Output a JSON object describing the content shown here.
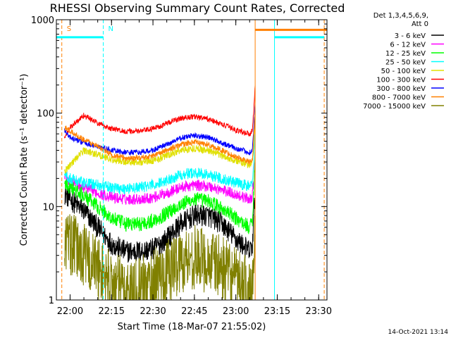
{
  "chart_data": {
    "type": "line",
    "title": "RHESSI Observing Summary Count Rates, Corrected",
    "xlabel": "Start Time (18-Mar-07 21:55:02)",
    "ylabel": "Corrected Count Rate (s⁻¹ detector⁻¹)",
    "y_scale": "log",
    "ylim": [
      1,
      1000
    ],
    "xlim": [
      "21:55:02",
      "23:33:00"
    ],
    "grid": false,
    "legend_position": "right",
    "legend_header": [
      "Det 1,3,4,5,6,9,",
      "Att 0"
    ],
    "x_ticks": [
      "22:00",
      "22:15",
      "22:30",
      "22:45",
      "23:00",
      "23:15",
      "23:30"
    ],
    "y_ticks": [
      "1",
      "10",
      "100",
      "1000"
    ],
    "annotations": [
      {
        "label": "S",
        "time": "21:57",
        "color": "#ff8000"
      },
      {
        "label": "N",
        "time": "22:12",
        "color": "#00ffff"
      }
    ],
    "vertical_lines": [
      {
        "time": "21:55",
        "color": "#00ffff",
        "style": "solid"
      },
      {
        "time": "21:57",
        "color": "#ff8000",
        "style": "dashed"
      },
      {
        "time": "22:12",
        "color": "#00ffff",
        "style": "dashed"
      },
      {
        "time": "23:07",
        "color": "#ff8000",
        "style": "solid"
      },
      {
        "time": "23:14",
        "color": "#00ffff",
        "style": "solid"
      },
      {
        "time": "23:32",
        "color": "#ff8000",
        "style": "dashed"
      }
    ],
    "bars_at_top": [
      {
        "color": "#00ffff",
        "start": "21:55",
        "end": "22:12",
        "value": 650
      },
      {
        "color": "#00ffff",
        "start": "23:14",
        "end": "23:32",
        "value": 650
      },
      {
        "color": "#ff8000",
        "start": "23:07",
        "end": "23:33",
        "value": 780
      }
    ],
    "x_times": [
      "21:58",
      "22:00",
      "22:05",
      "22:10",
      "22:15",
      "22:20",
      "22:25",
      "22:30",
      "22:35",
      "22:40",
      "22:45",
      "22:50",
      "22:55",
      "23:00",
      "23:05",
      "23:06",
      "23:07"
    ],
    "series": [
      {
        "name": "3 - 6 keV",
        "color": "#000000",
        "noise": 0.12,
        "values": [
          14,
          12,
          9,
          6,
          4,
          3.3,
          3.3,
          3.5,
          4.5,
          6.5,
          8,
          8,
          6.5,
          4.5,
          3.3,
          3.8,
          15
        ]
      },
      {
        "name": "6 - 12 keV",
        "color": "#ff00ff",
        "noise": 0.06,
        "values": [
          21,
          19,
          16,
          14,
          12.5,
          12,
          12,
          12.5,
          14,
          16,
          17,
          16.5,
          15,
          13.5,
          12,
          13,
          30
        ]
      },
      {
        "name": "12 - 25 keV",
        "color": "#00ff00",
        "noise": 0.08,
        "values": [
          17,
          16,
          13,
          10,
          7.5,
          6.5,
          6.5,
          7,
          8.5,
          10.5,
          12,
          11.5,
          9.5,
          7.5,
          6,
          7,
          35
        ]
      },
      {
        "name": "25 - 50 keV",
        "color": "#00ffff",
        "noise": 0.06,
        "values": [
          22,
          20,
          18,
          17,
          16,
          15.5,
          16,
          17,
          19,
          22,
          23,
          22,
          20,
          18,
          16.5,
          18,
          60
        ]
      },
      {
        "name": "50 - 100 keV",
        "color": "#e0e000",
        "noise": 0.04,
        "values": [
          24,
          28,
          40,
          36,
          32,
          30,
          30,
          31,
          35,
          40,
          42,
          40,
          35,
          31,
          28,
          30,
          80
        ]
      },
      {
        "name": "100 - 300 keV",
        "color": "#ff0000",
        "noise": 0.03,
        "values": [
          55,
          70,
          95,
          78,
          68,
          64,
          64,
          68,
          78,
          88,
          92,
          86,
          76,
          66,
          60,
          65,
          200
        ]
      },
      {
        "name": "300 - 800 keV",
        "color": "#0000ff",
        "noise": 0.03,
        "values": [
          65,
          55,
          48,
          44,
          40,
          38,
          38,
          40,
          46,
          54,
          58,
          55,
          48,
          42,
          38,
          40,
          120
        ]
      },
      {
        "name": "800 - 7000 keV",
        "color": "#ff8000",
        "noise": 0.03,
        "values": [
          70,
          64,
          52,
          44,
          36,
          33,
          33,
          35,
          40,
          46,
          49,
          46,
          40,
          34,
          30,
          32,
          100
        ]
      },
      {
        "name": "7000 - 15000 keV",
        "color": "#808000",
        "noise": 0.35,
        "values": [
          4.5,
          4,
          3,
          2.2,
          1.5,
          1.3,
          1.3,
          1.6,
          2,
          2.6,
          2.9,
          2.6,
          2.2,
          1.6,
          1.3,
          1.5,
          6
        ]
      }
    ]
  },
  "footer_date": "14-Oct-2021 13:14"
}
